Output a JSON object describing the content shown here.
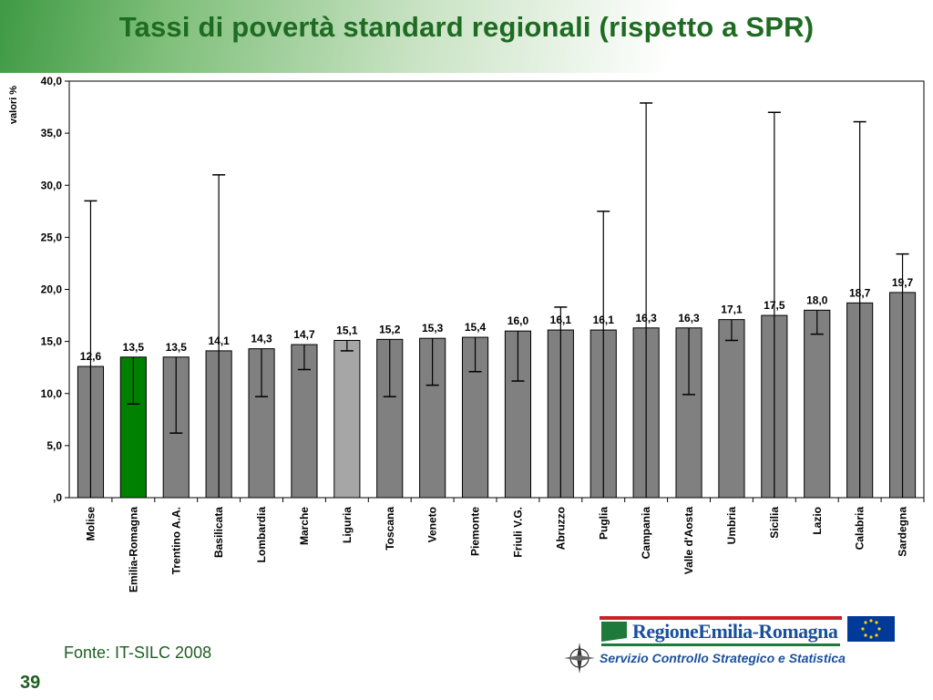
{
  "title": "Tassi di povertà standard regionali (rispetto a SPR)",
  "source": "Fonte: IT-SILC 2008",
  "page_number": "39",
  "logo": {
    "name": "RegioneEmilia-Romagna",
    "service": "Servizio Controllo Strategico e Statistica"
  },
  "colors": {
    "bar": "#808080",
    "highlight": "#008000",
    "liguria": "#a6a6a6",
    "title": "#1e6b22"
  },
  "chart_data": {
    "type": "bar",
    "ylabel": "valori %",
    "ylim": [
      0,
      40
    ],
    "yticks": [
      "40,0",
      "35,0",
      "30,0",
      "25,0",
      "20,0",
      "15,0",
      "10,0",
      "5,0",
      ",0"
    ],
    "ytick_values": [
      40,
      35,
      30,
      25,
      20,
      15,
      10,
      5,
      0
    ],
    "grid": false,
    "categories": [
      "Molise",
      "Emilia-Romagna",
      "Trentino A.A.",
      "Basilicata",
      "Lombardia",
      "Marche",
      "Liguria",
      "Toscana",
      "Veneto",
      "Piemonte",
      "Friuli V.G.",
      "Abruzzo",
      "Puglia",
      "Campania",
      "Valle d'Aosta",
      "Umbria",
      "Sicilia",
      "Lazio",
      "Calabria",
      "Sardegna"
    ],
    "values": [
      12.6,
      13.5,
      13.5,
      14.1,
      14.3,
      14.7,
      15.1,
      15.2,
      15.3,
      15.4,
      16.0,
      16.1,
      16.1,
      16.3,
      16.3,
      17.1,
      17.5,
      18.0,
      18.7,
      19.7
    ],
    "value_labels": [
      "12,6",
      "13,5",
      "13,5",
      "14,1",
      "14,3",
      "14,7",
      "15,1",
      "15,2",
      "15,3",
      "15,4",
      "16,0",
      "16,1",
      "16,1",
      "16,3",
      "16,3",
      "17,1",
      "17,5",
      "18,0",
      "18,7",
      "19,7"
    ],
    "error_low": [
      0,
      9.0,
      6.2,
      0,
      9.7,
      12.3,
      14.1,
      9.7,
      10.8,
      12.1,
      11.2,
      0,
      0,
      0,
      9.9,
      15.1,
      0,
      15.7,
      0,
      0
    ],
    "error_high": [
      28.5,
      13.5,
      13.5,
      31.0,
      14.3,
      14.7,
      15.1,
      15.2,
      15.3,
      15.4,
      16.0,
      18.3,
      27.5,
      37.9,
      16.3,
      17.1,
      37.0,
      18.0,
      36.1,
      23.4
    ],
    "highlight_index": 1,
    "light_index": 6
  }
}
